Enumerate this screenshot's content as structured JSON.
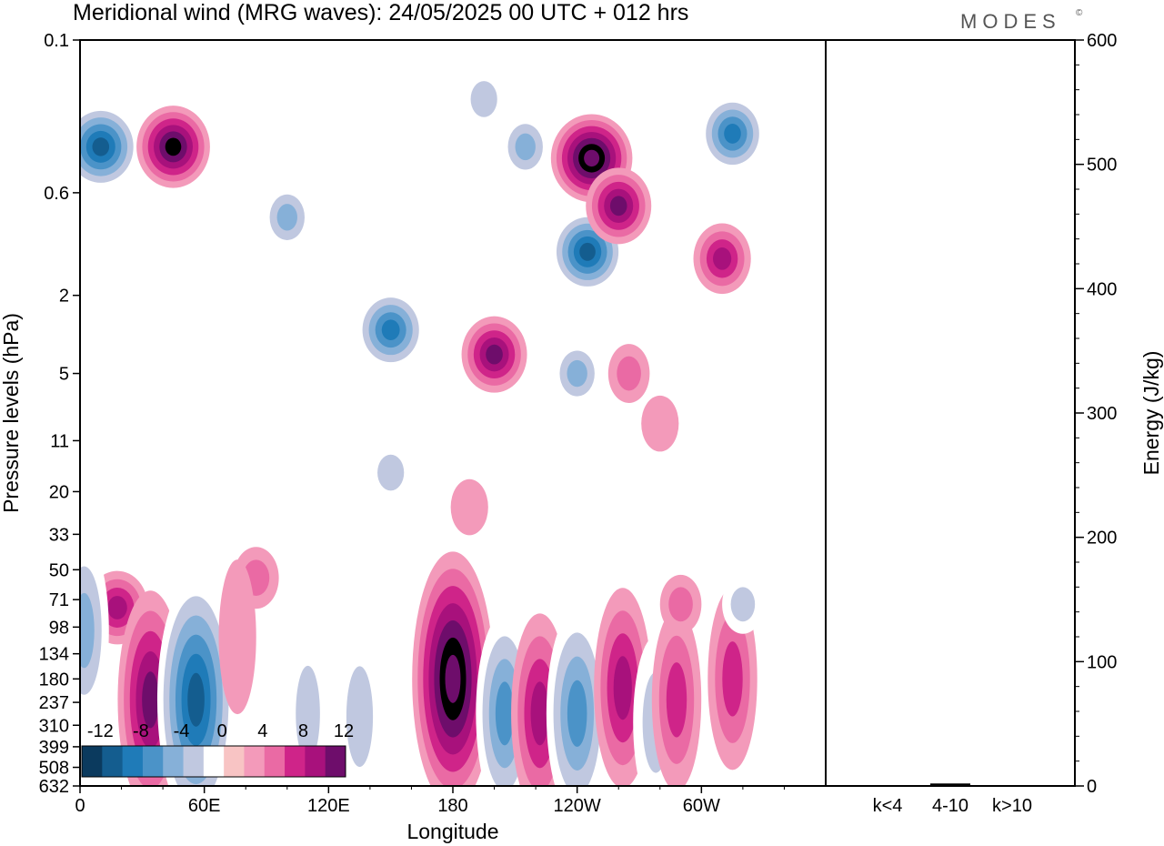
{
  "header": {
    "title": "Meridional wind (MRG waves):  24/05/2025  00 UTC  + 012 hrs",
    "brand": "MODES",
    "brand_mark": "©"
  },
  "chart_data": [
    {
      "type": "heatmap",
      "xlabel": "Longitude",
      "ylabel": "Pressure levels (hPa)",
      "x_ticks": [
        "0",
        "60E",
        "120E",
        "180",
        "120W",
        "60W"
      ],
      "y_ticks": [
        "0.1",
        "0.6",
        "2",
        "5",
        "11",
        "20",
        "33",
        "50",
        "71",
        "98",
        "134",
        "180",
        "237",
        "310",
        "399",
        "508",
        "632"
      ],
      "colorbar": {
        "labels": [
          "-12",
          "-8",
          "-4",
          "0",
          "4",
          "8",
          "12"
        ],
        "levels": [
          -14,
          -12,
          -10,
          -8,
          -6,
          -4,
          -2,
          2,
          4,
          6,
          8,
          10,
          12,
          14
        ],
        "colors": [
          "#0b3a5e",
          "#145d8f",
          "#1f7bb8",
          "#4b93c8",
          "#86b0d8",
          "#c0c8e0",
          "#ffffff",
          "#f8c4c4",
          "#f39aba",
          "#ea6aa4",
          "#cf2489",
          "#a8117c",
          "#6e0d6b"
        ]
      },
      "features": [
        {
          "lon": 10,
          "level": 0.35,
          "value": -13
        },
        {
          "lon": 45,
          "level": 0.35,
          "value": 12
        },
        {
          "lon": 100,
          "level": 0.8,
          "value": -6
        },
        {
          "lon": 195,
          "level": 0.2,
          "value": -5
        },
        {
          "lon": 215,
          "level": 0.35,
          "value": -6
        },
        {
          "lon": 247,
          "level": 0.4,
          "value": 14
        },
        {
          "lon": 245,
          "level": 1.2,
          "value": -12
        },
        {
          "lon": 260,
          "level": 0.7,
          "value": 10
        },
        {
          "lon": 315,
          "level": 0.3,
          "value": -10
        },
        {
          "lon": 310,
          "level": 1.3,
          "value": 8
        },
        {
          "lon": 150,
          "level": 3.0,
          "value": -11
        },
        {
          "lon": 200,
          "level": 4.0,
          "value": 10
        },
        {
          "lon": 240,
          "level": 5.0,
          "value": -6
        },
        {
          "lon": 265,
          "level": 5.0,
          "value": 4
        },
        {
          "lon": 280,
          "level": 9.0,
          "value": 3
        },
        {
          "lon": 150,
          "level": 16.0,
          "value": -5
        },
        {
          "lon": 188,
          "level": 24.0,
          "value": 3
        },
        {
          "lon": 18,
          "level": 78.0,
          "value": 9
        },
        {
          "lon": 85,
          "level": 55.0,
          "value": 5
        },
        {
          "lon": 2,
          "level": 102.0,
          "value": -6
        },
        {
          "lon": 34,
          "level": 230.0,
          "value": 10
        },
        {
          "lon": 56,
          "level": 230.0,
          "value": -13
        },
        {
          "lon": 76,
          "level": 110.0,
          "value": 3
        },
        {
          "lon": 110,
          "level": 270.0,
          "value": -4
        },
        {
          "lon": 135,
          "level": 280.0,
          "value": -5
        },
        {
          "lon": 180,
          "level": 180.0,
          "value": 14
        },
        {
          "lon": 205,
          "level": 270.0,
          "value": -8
        },
        {
          "lon": 222,
          "level": 270.0,
          "value": 8
        },
        {
          "lon": 240,
          "level": 270.0,
          "value": -9
        },
        {
          "lon": 262,
          "level": 200.0,
          "value": 8
        },
        {
          "lon": 278,
          "level": 300.0,
          "value": -5
        },
        {
          "lon": 288,
          "level": 230.0,
          "value": 6
        },
        {
          "lon": 315,
          "level": 180.0,
          "value": 6
        },
        {
          "lon": 290,
          "level": 75.0,
          "value": 4
        },
        {
          "lon": 320,
          "level": 75.0,
          "value": -4
        }
      ]
    },
    {
      "type": "bar",
      "ylabel": "Energy (J/kg)",
      "categories": [
        "k<4",
        "4-10",
        "k>10"
      ],
      "values": [
        0.5,
        2,
        0.5
      ],
      "ylim": [
        0,
        600
      ],
      "y_ticks": [
        "0",
        "100",
        "200",
        "300",
        "400",
        "500",
        "600"
      ]
    }
  ]
}
